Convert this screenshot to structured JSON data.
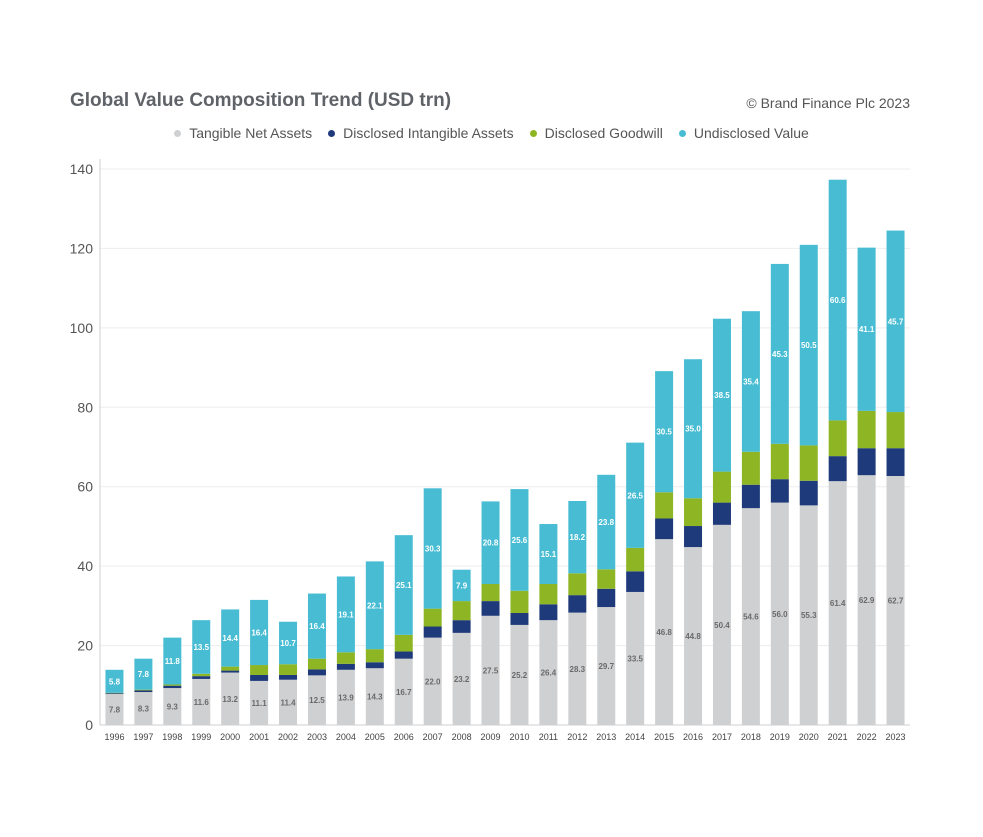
{
  "header": {
    "title": "Global Value Composition Trend (USD trn)",
    "credit": "© Brand Finance Plc 2023"
  },
  "chart_data": {
    "type": "bar",
    "stacked": true,
    "title": "Global Value Composition Trend (USD trn)",
    "xlabel": "",
    "ylabel": "",
    "ylim": [
      0,
      140
    ],
    "yticks": [
      0,
      20,
      40,
      60,
      80,
      100,
      120,
      140
    ],
    "grid": true,
    "legend_position": "top-center",
    "categories": [
      "1996",
      "1997",
      "1998",
      "1999",
      "2000",
      "2001",
      "2002",
      "2003",
      "2004",
      "2005",
      "2006",
      "2007",
      "2008",
      "2009",
      "2010",
      "2011",
      "2012",
      "2013",
      "2014",
      "2015",
      "2016",
      "2017",
      "2018",
      "2019",
      "2020",
      "2021",
      "2022",
      "2023"
    ],
    "series": [
      {
        "name": "Tangible Net Assets",
        "color": "#cfd0d2",
        "values": [
          7.8,
          8.3,
          9.3,
          11.6,
          13.2,
          11.1,
          11.4,
          12.5,
          13.9,
          14.3,
          16.7,
          22.0,
          23.2,
          27.5,
          25.2,
          26.4,
          28.3,
          29.7,
          33.5,
          46.8,
          44.8,
          50.4,
          54.6,
          56.0,
          55.3,
          61.4,
          62.9,
          62.7
        ],
        "labels": [
          "7.8",
          "8.3",
          "9.3",
          "11.6",
          "13.2",
          "11.1",
          "11.4",
          "12.5",
          "13.9",
          "14.3",
          "16.7",
          "22.0",
          "23.2",
          "27.5",
          "25.2",
          "26.4",
          "28.3",
          "29.7",
          "33.5",
          "46.8",
          "44.8",
          "50.4",
          "54.6",
          "56.0",
          "55.3",
          "61.4",
          "62.9",
          "62.7"
        ]
      },
      {
        "name": "Disclosed Intangible Assets",
        "color": "#1f3a7a",
        "values": [
          0.2,
          0.4,
          0.6,
          0.7,
          0.5,
          1.5,
          1.2,
          1.5,
          1.5,
          1.5,
          1.8,
          2.8,
          3.2,
          3.7,
          3.0,
          4.0,
          4.4,
          4.6,
          5.2,
          5.2,
          5.3,
          5.6,
          5.9,
          5.9,
          6.2,
          6.3,
          6.8,
          7.0
        ]
      },
      {
        "name": "Disclosed Goodwill",
        "color": "#8db524",
        "values": [
          0.1,
          0.2,
          0.3,
          0.6,
          1.0,
          2.5,
          2.7,
          2.7,
          2.9,
          3.3,
          4.2,
          4.5,
          4.8,
          4.3,
          5.6,
          5.1,
          5.5,
          4.9,
          5.9,
          6.6,
          7.0,
          7.8,
          8.3,
          8.9,
          8.9,
          9.0,
          9.4,
          9.1
        ]
      },
      {
        "name": "Undisclosed Value",
        "color": "#47bcd3",
        "values": [
          5.8,
          7.8,
          11.8,
          13.5,
          14.4,
          16.4,
          10.7,
          16.4,
          19.1,
          22.1,
          25.1,
          30.3,
          7.9,
          20.8,
          25.6,
          15.1,
          18.2,
          23.8,
          26.5,
          30.5,
          35.0,
          38.5,
          35.4,
          45.3,
          50.5,
          60.6,
          41.1,
          45.7
        ],
        "labels": [
          "5.8",
          "7.8",
          "11.8",
          "13.5",
          "14.4",
          "16.4",
          "10.7",
          "16.4",
          "19.1",
          "22.1",
          "25.1",
          "30.3",
          "7.9",
          "20.8",
          "25.6",
          "15.1",
          "18.2",
          "23.8",
          "26.5",
          "30.5",
          "35.0",
          "38.5",
          "35.4",
          "45.3",
          "50.5",
          "60.6",
          "41.1",
          "45.7"
        ]
      }
    ]
  }
}
